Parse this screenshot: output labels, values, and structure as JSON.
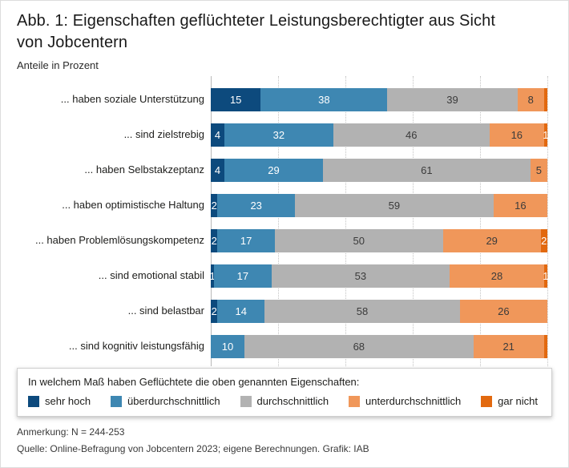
{
  "header": {
    "title_line1": "Abb. 1: Eigenschaften geflüchteter Leistungsberechtigter aus Sicht",
    "title_line2": "von Jobcentern",
    "subtitle": "Anteile in Prozent"
  },
  "colors": {
    "sehr_hoch": "#0d4a7d",
    "ueberdurchschnittlich": "#3e87b2",
    "durchschnittlich": "#b2b2b2",
    "unterdurchschnittlich": "#f0975a",
    "gar_nicht": "#e2690f",
    "grid": "#c3c3c3"
  },
  "chart_data": {
    "type": "bar",
    "variant": "horizontal-stacked-100",
    "title": "Abb. 1: Eigenschaften geflüchteter Leistungsberechtigter aus Sicht von Jobcentern",
    "subtitle": "Anteile in Prozent",
    "xlim": [
      0,
      100
    ],
    "grid": "dotted vertical lines every 20 percent",
    "legend_position": "bottom box",
    "categories": [
      "... haben soziale Unterstützung",
      "... sind zielstrebig",
      "... haben Selbstakzeptanz",
      "... haben optimistische Haltung",
      "... haben Problemlösungskompetenz",
      "... sind emotional stabil",
      "... sind belastbar",
      "... sind kognitiv leistungsfähig"
    ],
    "series": [
      {
        "name": "sehr hoch",
        "color_key": "sehr_hoch",
        "label_color": "#ffffff",
        "values": [
          15,
          4,
          4,
          2,
          2,
          1,
          2,
          0
        ],
        "labels": [
          "15",
          "4",
          "4",
          "2",
          "2",
          "1",
          "2",
          ""
        ]
      },
      {
        "name": "überdurchschnittlich",
        "color_key": "ueberdurchschnittlich",
        "label_color": "#ffffff",
        "values": [
          38,
          32,
          29,
          23,
          17,
          17,
          14,
          10
        ],
        "labels": [
          "38",
          "32",
          "29",
          "23",
          "17",
          "17",
          "14",
          "10"
        ]
      },
      {
        "name": "durchschnittlich",
        "color_key": "durchschnittlich",
        "label_color": "#3b3b3b",
        "values": [
          39,
          46,
          61,
          59,
          50,
          53,
          58,
          68
        ],
        "labels": [
          "39",
          "46",
          "61",
          "59",
          "50",
          "53",
          "58",
          "68"
        ]
      },
      {
        "name": "unterdurchschnittlich",
        "color_key": "unterdurchschnittlich",
        "label_color": "#3b3b3b",
        "values": [
          8,
          16,
          5,
          16,
          29,
          28,
          26,
          21
        ],
        "labels": [
          "8",
          "16",
          "5",
          "16",
          "29",
          "28",
          "26",
          "21"
        ]
      },
      {
        "name": "gar nicht",
        "color_key": "gar_nicht",
        "label_color": "#ffffff",
        "values": [
          1,
          1,
          0,
          0,
          2,
          1,
          0,
          1
        ],
        "labels": [
          "",
          "1",
          "",
          "",
          "2",
          "1",
          "",
          ""
        ]
      }
    ]
  },
  "legend": {
    "title": "In welchem Maß haben Geflüchtete die oben genannten Eigenschaften:",
    "items": [
      {
        "label": "sehr hoch",
        "color_key": "sehr_hoch"
      },
      {
        "label": "überdurchschnittlich",
        "color_key": "ueberdurchschnittlich"
      },
      {
        "label": "durchschnittlich",
        "color_key": "durchschnittlich"
      },
      {
        "label": "unterdurchschnittlich",
        "color_key": "unterdurchschnittlich"
      },
      {
        "label": "gar nicht",
        "color_key": "gar_nicht"
      }
    ]
  },
  "footer": {
    "note": "Anmerkung: N = 244-253",
    "source": "Quelle: Online-Befragung von Jobcentern 2023; eigene Berechnungen. Grafik: IAB"
  }
}
